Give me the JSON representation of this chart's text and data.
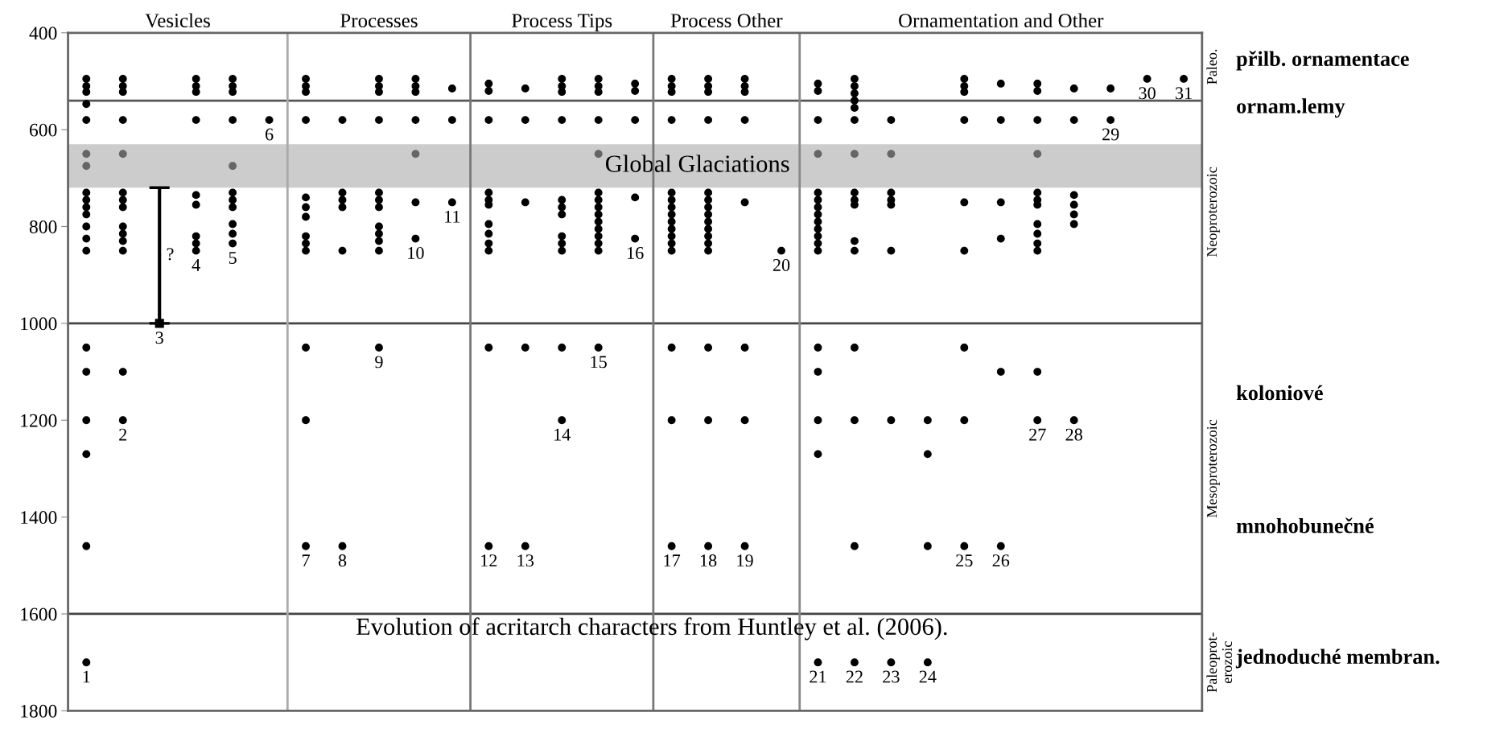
{
  "chart_data": {
    "type": "scatter",
    "title": "Evolution of acritarch characters from Huntley et al. (2006).",
    "categories": [
      null,
      null,
      null,
      null,
      null,
      null,
      null,
      null,
      null,
      null,
      null,
      null,
      null,
      null,
      null,
      null,
      null,
      null,
      null,
      null,
      null,
      null,
      null,
      null,
      null,
      null,
      null,
      null,
      null,
      null,
      null
    ],
    "ylim": [
      1800,
      400
    ],
    "yticks": [
      400,
      600,
      800,
      1000,
      1200,
      1400,
      1600,
      1800
    ],
    "tick_labels": "y",
    "marker": "circle",
    "bands": [
      {
        "axis": "y",
        "from": 630,
        "to": 720,
        "label": "Global Glaciations",
        "color": "#cccccc"
      }
    ],
    "ref_lines": [
      {
        "axis": "y",
        "value": 540,
        "color": "#555555"
      },
      {
        "axis": "y",
        "value": 1000,
        "color": "#444444"
      },
      {
        "axis": "y",
        "value": 1600,
        "color": "#444444"
      }
    ],
    "series": [
      {
        "color": "#000000",
        "values": [
          495,
          495,
          null,
          495,
          495,
          null,
          495,
          580,
          495,
          495,
          515,
          505,
          515,
          495,
          495,
          505,
          495,
          495,
          495,
          null,
          505,
          495,
          580,
          1200,
          495,
          505,
          505,
          515,
          515,
          null,
          null
        ]
      },
      {
        "color": "#000000",
        "values": [
          510,
          510,
          null,
          510,
          510,
          null,
          510,
          730,
          510,
          510,
          580,
          520,
          580,
          510,
          510,
          520,
          510,
          510,
          510,
          null,
          520,
          510,
          730,
          1270,
          510,
          580,
          520,
          580,
          null,
          null,
          null
        ]
      },
      {
        "color": "#000000",
        "values": [
          522,
          522,
          null,
          522,
          522,
          null,
          522,
          745,
          522,
          522,
          null,
          580,
          750,
          522,
          522,
          580,
          522,
          522,
          522,
          null,
          580,
          525,
          745,
          1460,
          522,
          750,
          580,
          735,
          null,
          null,
          null
        ]
      },
      {
        "color": "#000000",
        "values": [
          547,
          580,
          null,
          580,
          580,
          null,
          580,
          760,
          580,
          580,
          null,
          730,
          1050,
          580,
          580,
          740,
          580,
          580,
          580,
          null,
          730,
          540,
          755,
          null,
          580,
          825,
          730,
          755,
          null,
          null,
          null
        ]
      },
      {
        "color": "#000000",
        "values": [
          580,
          730,
          null,
          735,
          730,
          null,
          740,
          850,
          730,
          750,
          null,
          745,
          null,
          745,
          730,
          null,
          730,
          730,
          750,
          null,
          745,
          555,
          850,
          null,
          750,
          1100,
          745,
          775,
          null,
          null,
          null
        ]
      },
      {
        "color": "#000000",
        "values": [
          730,
          745,
          null,
          755,
          745,
          null,
          760,
          null,
          745,
          null,
          null,
          755,
          null,
          760,
          745,
          null,
          745,
          745,
          1050,
          null,
          760,
          580,
          1200,
          null,
          850,
          null,
          755,
          795,
          null,
          null,
          null
        ]
      },
      {
        "color": "#000000",
        "values": [
          745,
          760,
          null,
          820,
          760,
          null,
          780,
          null,
          760,
          null,
          null,
          795,
          null,
          775,
          760,
          null,
          760,
          760,
          1200,
          null,
          775,
          730,
          null,
          null,
          1050,
          null,
          795,
          null,
          null,
          null,
          null
        ]
      },
      {
        "color": "#000000",
        "values": [
          760,
          800,
          null,
          835,
          795,
          null,
          820,
          null,
          800,
          null,
          null,
          815,
          null,
          820,
          775,
          null,
          775,
          775,
          null,
          null,
          790,
          745,
          null,
          null,
          1200,
          null,
          815,
          null,
          null,
          null,
          null
        ]
      },
      {
        "color": "#000000",
        "values": [
          775,
          815,
          null,
          null,
          815,
          null,
          835,
          null,
          815,
          null,
          null,
          835,
          null,
          835,
          790,
          null,
          790,
          790,
          null,
          null,
          805,
          755,
          null,
          null,
          null,
          null,
          835,
          null,
          null,
          null,
          null
        ]
      },
      {
        "color": "#000000",
        "values": [
          800,
          830,
          null,
          null,
          null,
          null,
          850,
          null,
          830,
          null,
          null,
          850,
          null,
          850,
          805,
          null,
          805,
          805,
          null,
          null,
          820,
          830,
          null,
          null,
          null,
          null,
          850,
          null,
          null,
          null,
          null
        ]
      },
      {
        "color": "#000000",
        "values": [
          825,
          850,
          null,
          null,
          null,
          null,
          1050,
          null,
          850,
          null,
          null,
          1050,
          null,
          1050,
          820,
          null,
          820,
          820,
          null,
          null,
          835,
          850,
          null,
          null,
          null,
          null,
          1100,
          null,
          null,
          null,
          null
        ]
      },
      {
        "color": "#000000",
        "values": [
          850,
          1100,
          null,
          null,
          null,
          null,
          1200,
          null,
          null,
          null,
          null,
          null,
          null,
          null,
          835,
          null,
          835,
          835,
          null,
          null,
          850,
          1050,
          null,
          null,
          null,
          null,
          null,
          null,
          null,
          null,
          null
        ]
      },
      {
        "color": "#000000",
        "values": [
          1050,
          null,
          null,
          null,
          null,
          null,
          null,
          null,
          null,
          null,
          null,
          null,
          null,
          null,
          850,
          null,
          850,
          850,
          null,
          null,
          1050,
          1200,
          null,
          null,
          null,
          null,
          null,
          null,
          null,
          null,
          null
        ]
      },
      {
        "color": "#000000",
        "values": [
          1100,
          null,
          null,
          null,
          null,
          null,
          null,
          null,
          null,
          null,
          null,
          null,
          null,
          null,
          null,
          null,
          1050,
          1050,
          null,
          null,
          1100,
          1460,
          null,
          null,
          null,
          null,
          null,
          null,
          null,
          null,
          null
        ]
      },
      {
        "color": "#000000",
        "values": [
          1200,
          null,
          null,
          null,
          null,
          null,
          null,
          null,
          null,
          null,
          null,
          null,
          null,
          null,
          null,
          null,
          1200,
          1200,
          null,
          null,
          1200,
          null,
          null,
          null,
          null,
          null,
          null,
          null,
          null,
          null,
          null
        ]
      },
      {
        "color": "#000000",
        "values": [
          1270,
          null,
          null,
          null,
          null,
          null,
          null,
          null,
          null,
          null,
          null,
          null,
          null,
          null,
          null,
          null,
          null,
          null,
          null,
          null,
          1270,
          null,
          null,
          null,
          null,
          null,
          null,
          null,
          null,
          null,
          null
        ]
      },
      {
        "color": "#000000",
        "values": [
          1460,
          null,
          null,
          null,
          null,
          null,
          null,
          null,
          null,
          null,
          null,
          null,
          null,
          null,
          null,
          null,
          null,
          null,
          null,
          null,
          null,
          null,
          null,
          null,
          null,
          null,
          null,
          null,
          null,
          null,
          null
        ]
      },
      {
        "color": "#666666",
        "values": [
          650,
          650,
          null,
          null,
          675,
          null,
          null,
          null,
          null,
          650,
          null,
          null,
          null,
          null,
          650,
          null,
          null,
          null,
          null,
          null,
          650,
          650,
          650,
          null,
          null,
          null,
          650,
          null,
          null,
          null,
          null
        ]
      },
      {
        "color": "#666666",
        "values": [
          675,
          null,
          null,
          null,
          null,
          null,
          null,
          null,
          null,
          null,
          null,
          null,
          null,
          null,
          null,
          null,
          null,
          null,
          null,
          null,
          null,
          null,
          null,
          null,
          null,
          null,
          null,
          null,
          null,
          null,
          null
        ]
      },
      {
        "color": "#000000",
        "values": [
          1700,
          1200,
          null,
          850,
          835,
          580,
          1460,
          1460,
          1050,
          825,
          750,
          1460,
          1460,
          1200,
          1050,
          825,
          1460,
          1460,
          1460,
          850,
          1700,
          1700,
          1700,
          1700,
          1460,
          1460,
          1200,
          1200,
          580,
          495,
          495
        ]
      },
      {
        "color": "#000000",
        "marker": "square",
        "values": [
          null,
          null,
          1000,
          null,
          null,
          null,
          null,
          null,
          null,
          null,
          null,
          null,
          null,
          null,
          null,
          null,
          null,
          null,
          null,
          null,
          null,
          null,
          null,
          null,
          null,
          null,
          null,
          null,
          null,
          null,
          null
        ],
        "errors": [
          null,
          null,
          [
            720,
            1000
          ],
          null,
          null,
          null,
          null,
          null,
          null,
          null,
          null,
          null,
          null,
          null,
          null,
          null,
          null,
          null,
          null,
          null,
          null,
          null,
          null,
          null,
          null,
          null,
          null,
          null,
          null,
          null,
          null
        ]
      }
    ],
    "annotations": [
      "Vesicles",
      "Processes",
      "Process Tips",
      "Process Other",
      "Ornamentation and Other",
      "Paleo.",
      "Neoproterozoic",
      "Mesoproterozoic",
      "Paleoprot-\nerozoic",
      "1",
      "2",
      "3",
      "4",
      "5",
      "6",
      "7",
      "8",
      "9",
      "10",
      "11",
      "12",
      "13",
      "14",
      "15",
      "16",
      "17",
      "18",
      "19",
      "20",
      "21",
      "22",
      "23",
      "24",
      "25",
      "26",
      "27",
      "28",
      "29",
      "30",
      "31",
      "?",
      "přilb. ornamentace",
      "ornam.lemy",
      "koloniové",
      "mnohobunečné",
      "jednoduché membran."
    ]
  }
}
